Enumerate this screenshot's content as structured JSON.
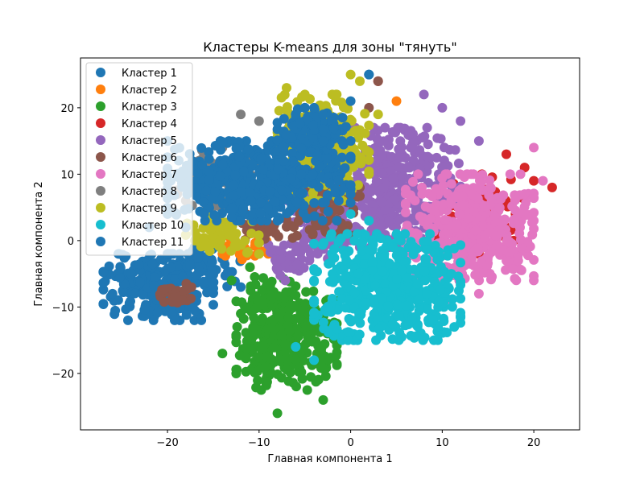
{
  "chart_data": {
    "type": "scatter",
    "title": "Кластеры K-means для зоны \"тянуть\"",
    "xlabel": "Главная компонента 1",
    "ylabel": "Главная компонента 2",
    "xlim": [
      -29.5,
      25
    ],
    "ylim": [
      -28.5,
      27.5
    ],
    "xticks": [
      -20,
      -10,
      0,
      10,
      20
    ],
    "xtick_labels": [
      "−20",
      "−10",
      "0",
      "10",
      "20"
    ],
    "yticks": [
      -20,
      -10,
      0,
      10,
      20
    ],
    "ytick_labels": [
      "−20",
      "−10",
      "0",
      "10",
      "20"
    ],
    "grid": false,
    "legend_position": "upper-left",
    "series": [
      {
        "name": "Кластер 1",
        "color": "#1f77b4",
        "regions": [
          {
            "cx": -21,
            "cy": -7,
            "rx": 6,
            "ry": 5,
            "n": 220
          },
          {
            "cx": -16,
            "cy": -4,
            "rx": 4,
            "ry": 3,
            "n": 60
          }
        ],
        "points": [
          [
            2,
            25
          ],
          [
            -22,
            2
          ],
          [
            -24,
            -5
          ],
          [
            -26,
            -8
          ]
        ]
      },
      {
        "name": "Кластер 2",
        "color": "#ff7f0e",
        "regions": [
          {
            "cx": -12,
            "cy": -1,
            "rx": 3,
            "ry": 2,
            "n": 25
          }
        ],
        "points": [
          [
            -11,
            -4
          ],
          [
            -13,
            0
          ],
          [
            -9,
            -2
          ],
          [
            5,
            21
          ],
          [
            -14,
            -2
          ]
        ]
      },
      {
        "name": "Кластер 3",
        "color": "#2ca02c",
        "regions": [
          {
            "cx": -7,
            "cy": -15,
            "rx": 5.5,
            "ry": 7.5,
            "n": 320
          },
          {
            "cx": -9,
            "cy": -8,
            "rx": 3,
            "ry": 3,
            "n": 40
          }
        ],
        "points": [
          [
            -13,
            -6
          ],
          [
            -12,
            -11
          ],
          [
            -8,
            -26
          ],
          [
            -3,
            -24
          ],
          [
            -14,
            -17
          ],
          [
            -11,
            -4
          ]
        ]
      },
      {
        "name": "Кластер 4",
        "color": "#d62728",
        "regions": [
          {
            "cx": 14,
            "cy": 5,
            "rx": 5,
            "ry": 5,
            "n": 70
          }
        ],
        "points": [
          [
            22,
            8
          ],
          [
            17,
            13
          ],
          [
            19,
            11
          ],
          [
            3,
            24
          ],
          [
            12,
            -6
          ],
          [
            18,
            4
          ],
          [
            20,
            9
          ],
          [
            14,
            -2
          ]
        ]
      },
      {
        "name": "Кластер 5",
        "color": "#9467bd",
        "regions": [
          {
            "cx": 5,
            "cy": 8,
            "rx": 7,
            "ry": 9,
            "n": 360
          },
          {
            "cx": -3,
            "cy": 2,
            "rx": 4,
            "ry": 5,
            "n": 90
          },
          {
            "cx": -7,
            "cy": -3,
            "rx": 2.5,
            "ry": 3,
            "n": 40
          }
        ],
        "points": [
          [
            10,
            20
          ],
          [
            12,
            18
          ],
          [
            14,
            15
          ],
          [
            8,
            22
          ],
          [
            -2,
            -6
          ]
        ]
      },
      {
        "name": "Кластер 6",
        "color": "#8c564b",
        "regions": [
          {
            "cx": -3,
            "cy": 6,
            "rx": 4,
            "ry": 6,
            "n": 90
          },
          {
            "cx": -19,
            "cy": -8,
            "rx": 2,
            "ry": 1.5,
            "n": 30
          },
          {
            "cx": -10,
            "cy": 2,
            "rx": 3,
            "ry": 2,
            "n": 30
          }
        ],
        "points": [
          [
            3,
            24
          ],
          [
            2,
            20
          ],
          [
            -5,
            11
          ],
          [
            -6,
            13
          ],
          [
            -8,
            8
          ]
        ]
      },
      {
        "name": "Кластер 7",
        "color": "#e377c2",
        "regions": [
          {
            "cx": 13,
            "cy": 2,
            "rx": 7,
            "ry": 8,
            "n": 420
          }
        ],
        "points": [
          [
            21,
            9
          ],
          [
            20,
            14
          ],
          [
            19,
            7
          ],
          [
            11,
            -9
          ],
          [
            14,
            -8
          ],
          [
            20,
            3
          ]
        ]
      },
      {
        "name": "Кластер 8",
        "color": "#7f7f7f",
        "regions": [
          {
            "cx": -14,
            "cy": 9,
            "rx": 5,
            "ry": 5,
            "n": 110
          }
        ],
        "points": [
          [
            -12,
            19
          ],
          [
            -10,
            18
          ],
          [
            -16,
            12
          ],
          [
            -14,
            14
          ],
          [
            -18,
            6
          ],
          [
            -19,
            4
          ]
        ]
      },
      {
        "name": "Кластер 9",
        "color": "#bcbd22",
        "regions": [
          {
            "cx": -3,
            "cy": 14,
            "rx": 5,
            "ry": 8,
            "n": 260
          },
          {
            "cx": -14,
            "cy": 1,
            "rx": 4,
            "ry": 4,
            "n": 70
          }
        ],
        "points": [
          [
            -7,
            23
          ],
          [
            -5,
            22
          ],
          [
            0,
            25
          ],
          [
            1,
            24
          ],
          [
            -2,
            22
          ],
          [
            3,
            19
          ],
          [
            -17,
            0
          ],
          [
            -12,
            5
          ]
        ]
      },
      {
        "name": "Кластер 10",
        "color": "#17becf",
        "regions": [
          {
            "cx": 4,
            "cy": -7,
            "rx": 8,
            "ry": 8,
            "n": 500
          }
        ],
        "points": [
          [
            2,
            3
          ],
          [
            0,
            4
          ],
          [
            9,
            -12
          ],
          [
            -4,
            -18
          ],
          [
            -6,
            -16
          ],
          [
            11,
            -5
          ]
        ]
      },
      {
        "name": "Кластер 11",
        "color": "#1f77b4",
        "regions": [
          {
            "cx": -10,
            "cy": 9,
            "rx": 10,
            "ry": 6,
            "n": 500
          },
          {
            "cx": -4,
            "cy": 16,
            "rx": 4,
            "ry": 4,
            "n": 120
          }
        ],
        "points": [
          [
            -3,
            19
          ],
          [
            -5,
            20
          ],
          [
            -16,
            4
          ],
          [
            -18,
            2
          ],
          [
            -20,
            -2
          ],
          [
            0,
            21
          ],
          [
            2,
            25
          ]
        ]
      }
    ]
  }
}
